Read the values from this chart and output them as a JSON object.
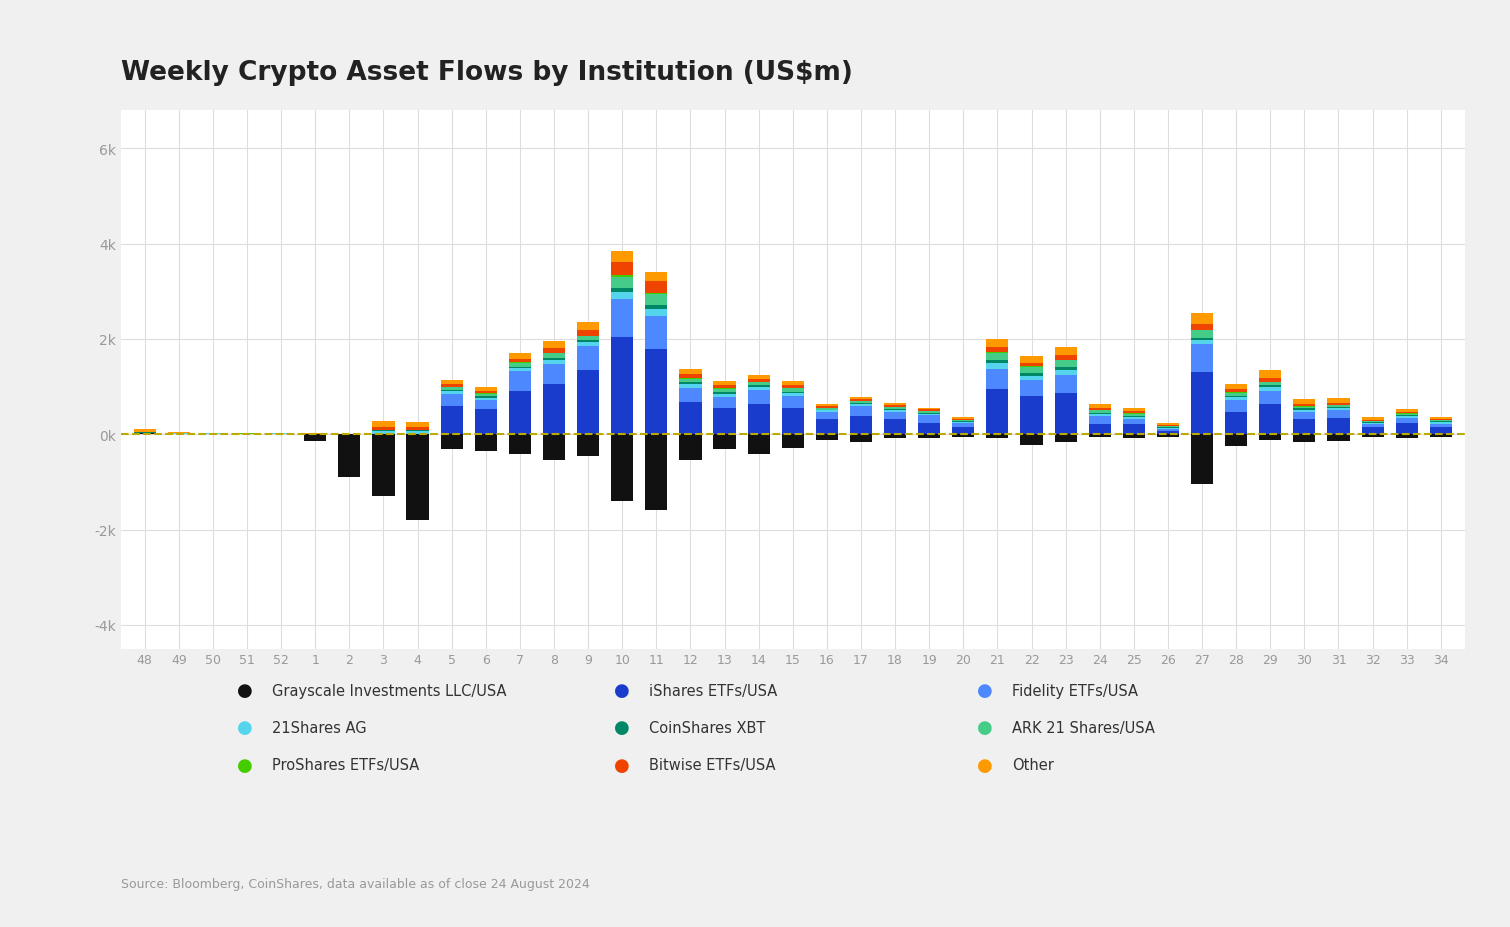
{
  "title": "Weekly Crypto Asset Flows by Institution (US$m)",
  "source": "Source: Bloomberg, CoinShares, data available as of close 24 August 2024",
  "weeks": [
    "48",
    "49",
    "50",
    "51",
    "52",
    "1",
    "2",
    "3",
    "4",
    "5",
    "6",
    "7",
    "8",
    "9",
    "10",
    "11",
    "12",
    "13",
    "14",
    "15",
    "16",
    "17",
    "18",
    "19",
    "20",
    "21",
    "22",
    "23",
    "24",
    "25",
    "26",
    "27",
    "28",
    "29",
    "30",
    "31",
    "32",
    "33",
    "34"
  ],
  "series": [
    {
      "name": "Grayscale Investments LLC/USA",
      "color": "#111111",
      "values": [
        20,
        15,
        10,
        8,
        10,
        -150,
        -900,
        -1300,
        -1800,
        -300,
        -350,
        -420,
        -550,
        -450,
        -1400,
        -1600,
        -550,
        -320,
        -420,
        -280,
        -130,
        -160,
        -70,
        -70,
        -60,
        -70,
        -220,
        -160,
        -60,
        -70,
        -60,
        -1050,
        -240,
        -130,
        -160,
        -150,
        -60,
        -70,
        -60
      ]
    },
    {
      "name": "iShares ETFs/USA",
      "color": "#1a3ccc",
      "values": [
        0,
        0,
        0,
        0,
        0,
        0,
        0,
        0,
        0,
        600,
        520,
        900,
        1050,
        1350,
        2050,
        1800,
        680,
        550,
        640,
        560,
        310,
        390,
        310,
        240,
        150,
        950,
        800,
        870,
        220,
        220,
        65,
        1300,
        470,
        630,
        310,
        340,
        150,
        230,
        150
      ]
    },
    {
      "name": "Fidelity ETFs/USA",
      "color": "#4d88ff",
      "values": [
        0,
        0,
        0,
        0,
        0,
        0,
        0,
        0,
        0,
        250,
        200,
        420,
        430,
        510,
        780,
        680,
        290,
        240,
        290,
        240,
        160,
        200,
        160,
        160,
        90,
        420,
        330,
        380,
        160,
        110,
        45,
        600,
        240,
        280,
        160,
        160,
        70,
        110,
        70
      ]
    },
    {
      "name": "21Shares AG",
      "color": "#55d4ee",
      "values": [
        15,
        8,
        8,
        4,
        8,
        8,
        4,
        60,
        60,
        50,
        50,
        65,
        80,
        80,
        160,
        160,
        80,
        65,
        65,
        65,
        32,
        40,
        40,
        32,
        24,
        120,
        100,
        105,
        48,
        40,
        24,
        80,
        64,
        80,
        48,
        48,
        24,
        40,
        32
      ]
    },
    {
      "name": "CoinShares XBT",
      "color": "#008866",
      "values": [
        8,
        4,
        4,
        2,
        4,
        4,
        2,
        30,
        30,
        24,
        24,
        32,
        40,
        40,
        80,
        80,
        40,
        32,
        32,
        32,
        16,
        20,
        20,
        16,
        12,
        64,
        52,
        52,
        24,
        20,
        12,
        40,
        32,
        40,
        24,
        24,
        12,
        20,
        16
      ]
    },
    {
      "name": "ARK 21 Shares/USA",
      "color": "#44cc88",
      "values": [
        0,
        0,
        0,
        0,
        0,
        0,
        0,
        0,
        0,
        64,
        56,
        80,
        96,
        80,
        240,
        224,
        80,
        64,
        64,
        64,
        32,
        40,
        40,
        32,
        24,
        160,
        128,
        144,
        48,
        40,
        24,
        160,
        64,
        64,
        40,
        40,
        24,
        32,
        24
      ]
    },
    {
      "name": "ProShares ETFs/USA",
      "color": "#44cc00",
      "values": [
        4,
        2,
        2,
        2,
        2,
        2,
        2,
        8,
        8,
        8,
        8,
        12,
        16,
        12,
        24,
        24,
        16,
        12,
        12,
        12,
        8,
        8,
        8,
        8,
        6,
        16,
        16,
        16,
        8,
        8,
        4,
        16,
        8,
        8,
        6,
        6,
        4,
        6,
        4
      ]
    },
    {
      "name": "Bitwise ETFs/USA",
      "color": "#ee4400",
      "values": [
        0,
        0,
        0,
        0,
        0,
        0,
        0,
        60,
        60,
        65,
        56,
        80,
        96,
        120,
        280,
        240,
        80,
        65,
        65,
        65,
        32,
        40,
        40,
        32,
        24,
        104,
        80,
        96,
        48,
        40,
        24,
        120,
        64,
        80,
        48,
        48,
        24,
        32,
        24
      ]
    },
    {
      "name": "Other",
      "color": "#ff9900",
      "values": [
        65,
        16,
        12,
        8,
        8,
        8,
        4,
        120,
        105,
        80,
        80,
        120,
        160,
        160,
        240,
        200,
        96,
        80,
        80,
        80,
        40,
        48,
        48,
        40,
        32,
        160,
        144,
        160,
        80,
        80,
        40,
        240,
        120,
        160,
        96,
        96,
        48,
        64,
        48
      ]
    }
  ],
  "ylim": [
    -4500,
    6800
  ],
  "yticks": [
    -4000,
    -2000,
    0,
    2000,
    4000,
    6000
  ],
  "ytick_labels": [
    "-4k",
    "-2k",
    "0k",
    "2k",
    "4k",
    "6k"
  ],
  "bg_color": "#f0f0f0",
  "plot_bg": "#ffffff",
  "grid_color": "#dddddd",
  "zero_line_color": "#bbaa00",
  "legend_order": [
    [
      "Grayscale Investments LLC/USA",
      "iShares ETFs/USA",
      "Fidelity ETFs/USA"
    ],
    [
      "21Shares AG",
      "CoinShares XBT",
      "ARK 21 Shares/USA"
    ],
    [
      "ProShares ETFs/USA",
      "Bitwise ETFs/USA",
      "Other"
    ]
  ]
}
